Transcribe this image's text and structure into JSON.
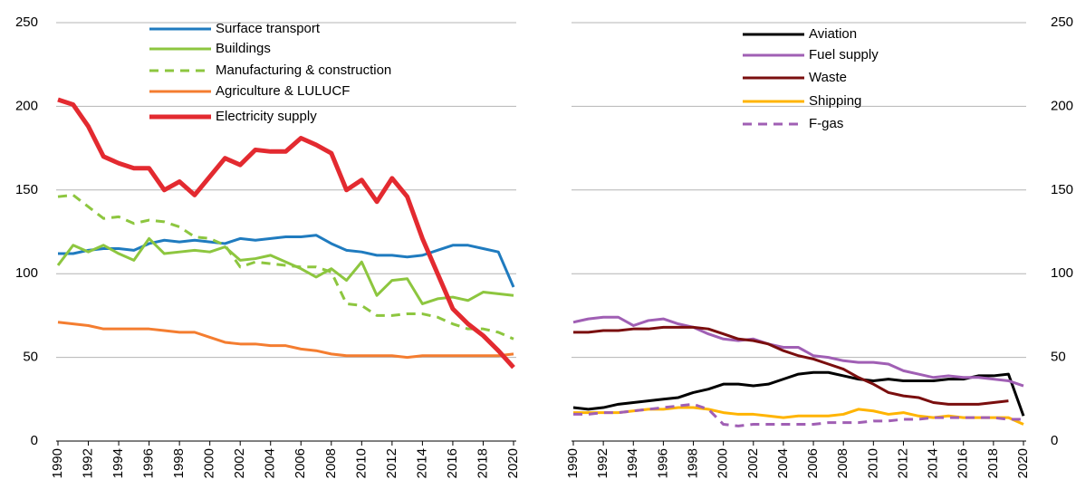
{
  "chart_data": [
    {
      "type": "line",
      "xlim": [
        1990,
        2020
      ],
      "ylim": [
        0,
        250
      ],
      "yticks": [
        0,
        50,
        100,
        150,
        200,
        250
      ],
      "grid": true,
      "yaxis_side": "left",
      "x": [
        1990,
        1991,
        1992,
        1993,
        1994,
        1995,
        1996,
        1997,
        1998,
        1999,
        2000,
        2001,
        2002,
        2003,
        2004,
        2005,
        2006,
        2007,
        2008,
        2009,
        2010,
        2011,
        2012,
        2013,
        2014,
        2015,
        2016,
        2017,
        2018,
        2019,
        2020
      ],
      "xticks": [
        1990,
        1992,
        1994,
        1996,
        1998,
        2000,
        2002,
        2004,
        2006,
        2008,
        2010,
        2012,
        2014,
        2016,
        2018,
        2020
      ],
      "series": [
        {
          "name": "Surface transport",
          "color": "#1f7bbf",
          "dash": false,
          "line_width": 3,
          "values": [
            112,
            112,
            114,
            115,
            115,
            114,
            118,
            120,
            119,
            120,
            119,
            118,
            121,
            120,
            121,
            122,
            122,
            123,
            118,
            114,
            113,
            111,
            111,
            110,
            111,
            114,
            117,
            117,
            115,
            113,
            92
          ]
        },
        {
          "name": "Buildings",
          "color": "#8dc63f",
          "dash": false,
          "line_width": 3,
          "values": [
            105,
            117,
            113,
            117,
            112,
            108,
            121,
            112,
            113,
            114,
            113,
            116,
            108,
            109,
            111,
            107,
            103,
            98,
            103,
            96,
            107,
            87,
            96,
            97,
            82,
            85,
            86,
            84,
            89,
            88,
            87
          ]
        },
        {
          "name": "Manufacturing & construction",
          "color": "#8dc63f",
          "dash": true,
          "line_width": 3,
          "values": [
            146,
            147,
            140,
            133,
            134,
            130,
            132,
            131,
            128,
            122,
            121,
            117,
            104,
            107,
            106,
            105,
            104,
            104,
            101,
            82,
            81,
            75,
            75,
            76,
            76,
            74,
            70,
            67,
            67,
            65,
            61
          ]
        },
        {
          "name": "Agriculture & LULUCF",
          "color": "#f47d30",
          "dash": false,
          "line_width": 3,
          "values": [
            71,
            70,
            69,
            67,
            67,
            67,
            67,
            66,
            65,
            65,
            62,
            59,
            58,
            58,
            57,
            57,
            55,
            54,
            52,
            51,
            51,
            51,
            51,
            50,
            51,
            51,
            51,
            51,
            51,
            51,
            52
          ]
        },
        {
          "name": "Electricity supply",
          "color": "#e32a30",
          "dash": false,
          "line_width": 5,
          "values": [
            204,
            201,
            188,
            170,
            166,
            163,
            163,
            150,
            155,
            147,
            158,
            169,
            165,
            174,
            173,
            173,
            181,
            177,
            172,
            150,
            156,
            143,
            157,
            146,
            121,
            100,
            79,
            70,
            63,
            54,
            44
          ]
        }
      ]
    },
    {
      "type": "line",
      "xlim": [
        1990,
        2020
      ],
      "ylim": [
        0,
        250
      ],
      "yticks": [
        0,
        50,
        100,
        150,
        200,
        250
      ],
      "grid": true,
      "yaxis_side": "right",
      "x": [
        1990,
        1991,
        1992,
        1993,
        1994,
        1995,
        1996,
        1997,
        1998,
        1999,
        2000,
        2001,
        2002,
        2003,
        2004,
        2005,
        2006,
        2007,
        2008,
        2009,
        2010,
        2011,
        2012,
        2013,
        2014,
        2015,
        2016,
        2017,
        2018,
        2019,
        2020
      ],
      "xticks": [
        1990,
        1992,
        1994,
        1996,
        1998,
        2000,
        2002,
        2004,
        2006,
        2008,
        2010,
        2012,
        2014,
        2016,
        2018,
        2020
      ],
      "series": [
        {
          "name": "Aviation",
          "color": "#000000",
          "dash": false,
          "line_width": 3,
          "values": [
            20,
            19,
            20,
            22,
            23,
            24,
            25,
            26,
            29,
            31,
            34,
            34,
            33,
            34,
            37,
            40,
            41,
            41,
            39,
            37,
            36,
            37,
            36,
            36,
            36,
            37,
            37,
            39,
            39,
            40,
            15
          ]
        },
        {
          "name": "Fuel supply",
          "color": "#a05fb4",
          "dash": false,
          "line_width": 3,
          "values": [
            71,
            73,
            74,
            74,
            69,
            72,
            73,
            70,
            68,
            64,
            61,
            60,
            61,
            58,
            56,
            56,
            51,
            50,
            48,
            47,
            47,
            46,
            42,
            40,
            38,
            39,
            38,
            38,
            37,
            36,
            33
          ]
        },
        {
          "name": "Waste",
          "color": "#7a0e0e",
          "dash": false,
          "line_width": 3,
          "values": [
            65,
            65,
            66,
            66,
            67,
            67,
            68,
            68,
            68,
            67,
            64,
            61,
            60,
            58,
            54,
            51,
            49,
            46,
            43,
            38,
            34,
            29,
            27,
            26,
            23,
            22,
            22,
            22,
            23,
            24,
            null
          ]
        },
        {
          "name": "Shipping",
          "color": "#ffb400",
          "dash": false,
          "line_width": 3,
          "values": [
            17,
            17,
            17,
            17,
            18,
            19,
            19,
            20,
            20,
            19,
            17,
            16,
            16,
            15,
            14,
            15,
            15,
            15,
            16,
            19,
            18,
            16,
            17,
            15,
            14,
            15,
            14,
            14,
            14,
            14,
            10
          ]
        },
        {
          "name": "F-gas",
          "color": "#a05fb4",
          "dash": true,
          "line_width": 3,
          "values": [
            16,
            16,
            17,
            17,
            18,
            19,
            20,
            21,
            22,
            19,
            10,
            9,
            10,
            10,
            10,
            10,
            10,
            11,
            11,
            11,
            12,
            12,
            13,
            13,
            14,
            14,
            14,
            14,
            14,
            13,
            13
          ]
        }
      ]
    }
  ]
}
